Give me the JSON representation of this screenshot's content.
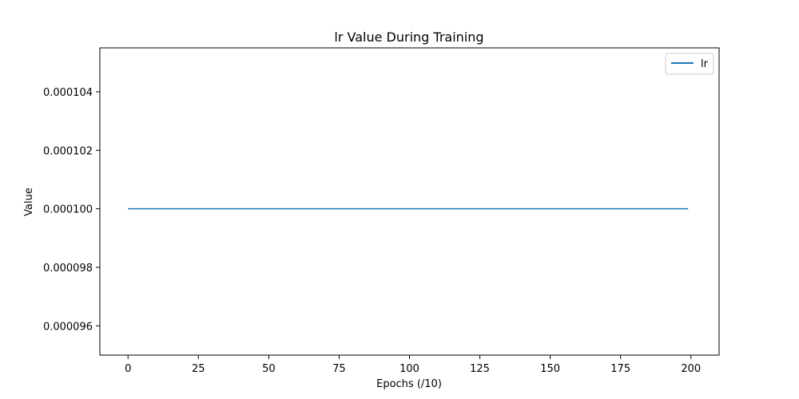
{
  "chart_data": {
    "type": "line",
    "title": "lr Value During Training",
    "xlabel": "Epochs (/10)",
    "ylabel": "Value",
    "xlim": [
      -10,
      210
    ],
    "ylim": [
      9.5e-05,
      0.0001055
    ],
    "xticks": [
      0,
      25,
      50,
      75,
      100,
      125,
      150,
      175,
      200
    ],
    "xtick_labels": [
      "0",
      "25",
      "50",
      "75",
      "100",
      "125",
      "150",
      "175",
      "200"
    ],
    "yticks": [
      9.6e-05,
      9.8e-05,
      0.0001,
      0.000102,
      0.000104
    ],
    "ytick_labels": [
      "0.000096",
      "0.000098",
      "0.000100",
      "0.000102",
      "0.000104"
    ],
    "grid": false,
    "legend": {
      "placement": "top-right",
      "entries": [
        "lr"
      ]
    },
    "series": [
      {
        "name": "lr",
        "color": "#1f77b4",
        "x": [
          0,
          199
        ],
        "y": [
          0.0001,
          0.0001
        ]
      }
    ]
  }
}
